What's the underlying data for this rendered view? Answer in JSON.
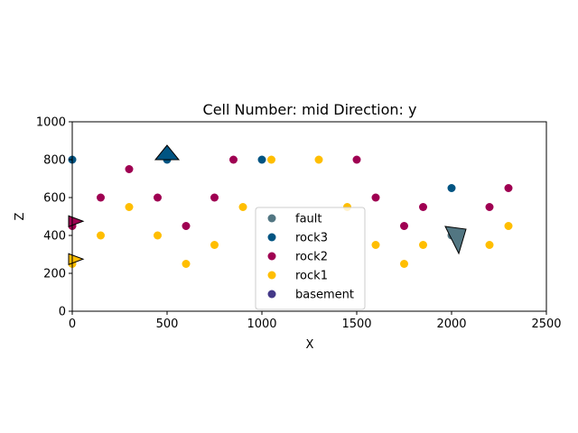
{
  "chart_data": {
    "type": "scatter",
    "title": "Cell Number: mid Direction: y",
    "xlabel": "X",
    "ylabel": "Z",
    "xlim": [
      0,
      2500
    ],
    "ylim": [
      0,
      1000
    ],
    "xticks": [
      0,
      500,
      1000,
      1500,
      2000,
      2500
    ],
    "yticks": [
      0,
      200,
      400,
      600,
      800,
      1000
    ],
    "grid": false,
    "legend_position": "lower-center",
    "series": [
      {
        "name": "fault",
        "color": "#527682",
        "points": [
          [
            2000,
            400
          ]
        ]
      },
      {
        "name": "rock3",
        "color": "#015482",
        "points": [
          [
            0,
            800
          ],
          [
            500,
            800
          ],
          [
            1000,
            800
          ],
          [
            2000,
            650
          ]
        ]
      },
      {
        "name": "rock2",
        "color": "#9f0052",
        "points": [
          [
            0,
            450
          ],
          [
            0,
            475
          ],
          [
            150,
            600
          ],
          [
            300,
            750
          ],
          [
            450,
            600
          ],
          [
            600,
            450
          ],
          [
            750,
            600
          ],
          [
            850,
            800
          ],
          [
            1500,
            800
          ],
          [
            1600,
            600
          ],
          [
            1750,
            450
          ],
          [
            1850,
            550
          ],
          [
            2200,
            550
          ],
          [
            2300,
            650
          ]
        ]
      },
      {
        "name": "rock1",
        "color": "#ffbe00",
        "points": [
          [
            0,
            250
          ],
          [
            0,
            275
          ],
          [
            150,
            400
          ],
          [
            300,
            550
          ],
          [
            450,
            400
          ],
          [
            600,
            250
          ],
          [
            750,
            350
          ],
          [
            900,
            550
          ],
          [
            1050,
            800
          ],
          [
            1300,
            800
          ],
          [
            1450,
            550
          ],
          [
            1600,
            350
          ],
          [
            1750,
            250
          ],
          [
            1850,
            350
          ],
          [
            2200,
            350
          ],
          [
            2300,
            450
          ]
        ]
      },
      {
        "name": "basement",
        "color": "#443988",
        "points": []
      }
    ],
    "orientations": [
      {
        "series": "rock3",
        "x": 500,
        "y": 800,
        "shape": "up-triangle"
      },
      {
        "series": "rock2",
        "x": 0,
        "y": 475,
        "shape": "right-triangle"
      },
      {
        "series": "rock1",
        "x": 0,
        "y": 275,
        "shape": "right-triangle"
      },
      {
        "series": "fault",
        "x": 2000,
        "y": 400,
        "shape": "tilted-triangle"
      }
    ]
  }
}
